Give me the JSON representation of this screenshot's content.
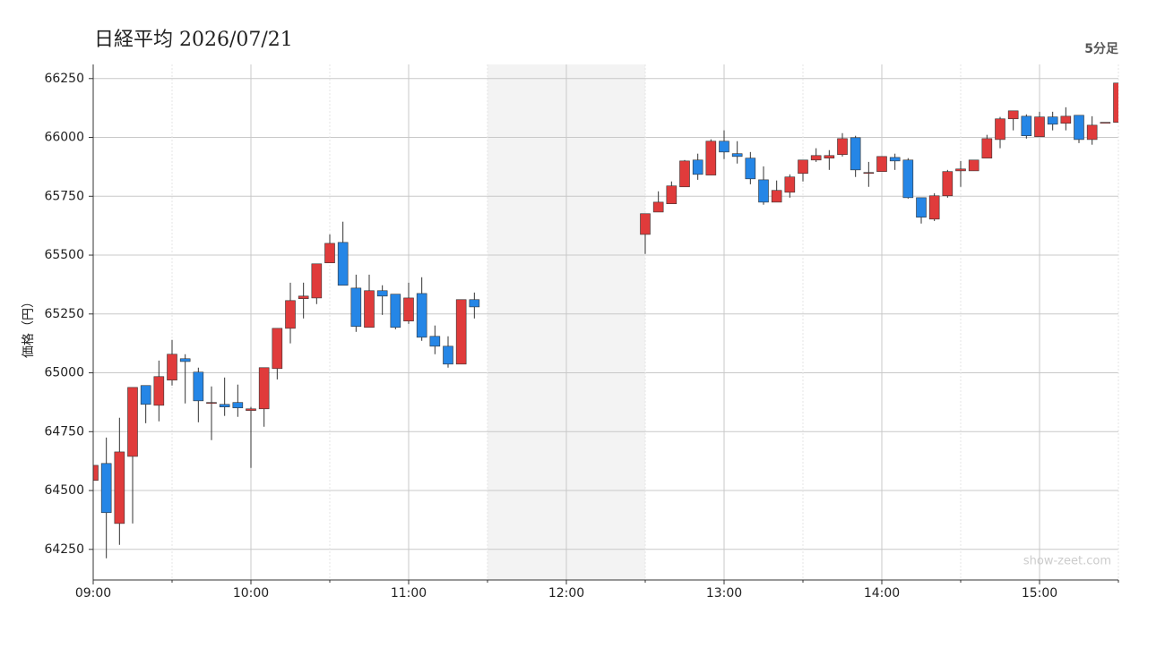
{
  "chart_data": {
    "type": "candlestick",
    "title": "日経平均 2026/07/21",
    "period_label": "5分足",
    "y_label": "価格（円）",
    "watermark": "show-zeet.com",
    "xlim": [
      "09:00",
      "15:30"
    ],
    "xticks": [
      "09:00",
      "10:00",
      "11:00",
      "12:00",
      "13:00",
      "14:00",
      "15:00"
    ],
    "xminor": [
      "09:30",
      "10:30",
      "11:30",
      "12:30",
      "13:30",
      "14:30",
      "15:30"
    ],
    "shaded_x": [
      "11:30",
      "12:30"
    ],
    "ylim": [
      64120,
      66310
    ],
    "yticks": [
      64250,
      64500,
      64750,
      65000,
      65250,
      65500,
      65750,
      66000,
      66250
    ],
    "grid": true,
    "up_color": "#e03b3b",
    "down_color": "#2586e6",
    "x": [
      "09:00",
      "09:05",
      "09:10",
      "09:15",
      "09:20",
      "09:25",
      "09:30",
      "09:35",
      "09:40",
      "09:45",
      "09:50",
      "09:55",
      "10:00",
      "10:05",
      "10:10",
      "10:15",
      "10:20",
      "10:25",
      "10:30",
      "10:35",
      "10:40",
      "10:45",
      "10:50",
      "10:55",
      "11:00",
      "11:05",
      "11:10",
      "11:15",
      "11:20",
      "11:25",
      "12:30",
      "12:35",
      "12:40",
      "12:45",
      "12:50",
      "12:55",
      "13:00",
      "13:05",
      "13:10",
      "13:15",
      "13:20",
      "13:25",
      "13:30",
      "13:35",
      "13:40",
      "13:45",
      "13:50",
      "13:55",
      "14:00",
      "14:05",
      "14:10",
      "14:15",
      "14:20",
      "14:25",
      "14:30",
      "14:35",
      "14:40",
      "14:45",
      "14:50",
      "14:55",
      "15:00",
      "15:05",
      "15:10",
      "15:15",
      "15:20",
      "15:25",
      "15:30"
    ],
    "open": [
      64543,
      64615,
      64360,
      64645,
      64946,
      64862,
      64969,
      65060,
      65003,
      64874,
      64866,
      64874,
      64840,
      64847,
      65018,
      65189,
      65315,
      65318,
      65467,
      65554,
      65360,
      65193,
      65349,
      65334,
      65220,
      65337,
      65155,
      65113,
      65037,
      65311,
      65588,
      65683,
      65718,
      65790,
      65904,
      65840,
      65984,
      65931,
      65912,
      65820,
      65725,
      65767,
      65847,
      65904,
      65912,
      65927,
      65999,
      65851,
      65855,
      65915,
      65904,
      65744,
      65653,
      65752,
      65858,
      65858,
      65912,
      65991,
      66079,
      66090,
      66003,
      66087,
      66060,
      66094,
      65991,
      66064,
      66064
    ],
    "high": [
      64607,
      64725,
      64809,
      64938,
      64946,
      65052,
      65140,
      65079,
      65022,
      64942,
      64980,
      64950,
      64855,
      65022,
      65189,
      65383,
      65383,
      65463,
      65588,
      65642,
      65417,
      65417,
      65372,
      65334,
      65383,
      65406,
      65201,
      65155,
      65311,
      65341,
      65676,
      65771,
      65813,
      65904,
      65931,
      65992,
      66030,
      65984,
      65938,
      65877,
      65817,
      65843,
      65904,
      65954,
      65946,
      66018,
      66007,
      65896,
      65919,
      65931,
      65912,
      65744,
      65763,
      65862,
      65900,
      65904,
      66011,
      66087,
      66113,
      66098,
      66109,
      66109,
      66128,
      66094,
      66090,
      66064,
      66231
    ],
    "low": [
      64543,
      64212,
      64269,
      64360,
      64786,
      64794,
      64946,
      64870,
      64790,
      64714,
      64817,
      64813,
      64596,
      64771,
      64972,
      65125,
      65231,
      65292,
      65467,
      65372,
      65174,
      65193,
      65246,
      65185,
      65208,
      65136,
      65079,
      65022,
      65037,
      65231,
      65505,
      65683,
      65718,
      65790,
      65820,
      65840,
      65908,
      65889,
      65801,
      65714,
      65725,
      65744,
      65813,
      65896,
      65862,
      65919,
      65832,
      65790,
      65855,
      65862,
      65740,
      65634,
      65645,
      65744,
      65790,
      65858,
      65912,
      65954,
      66030,
      65995,
      66003,
      66030,
      66030,
      65976,
      65969,
      66064,
      66064
    ],
    "close": [
      64607,
      64406,
      64664,
      64938,
      64866,
      64984,
      65079,
      65048,
      64881,
      64874,
      64855,
      64851,
      64847,
      65022,
      65189,
      65307,
      65326,
      65463,
      65550,
      65372,
      65197,
      65349,
      65326,
      65193,
      65318,
      65151,
      65113,
      65037,
      65311,
      65280,
      65676,
      65725,
      65794,
      65900,
      65843,
      65984,
      65938,
      65919,
      65824,
      65725,
      65775,
      65832,
      65904,
      65923,
      65923,
      65995,
      65862,
      65851,
      65919,
      65900,
      65744,
      65661,
      65752,
      65855,
      65866,
      65904,
      65995,
      66079,
      66113,
      66007,
      66087,
      66056,
      66090,
      65991,
      66052,
      66064,
      66231
    ]
  }
}
